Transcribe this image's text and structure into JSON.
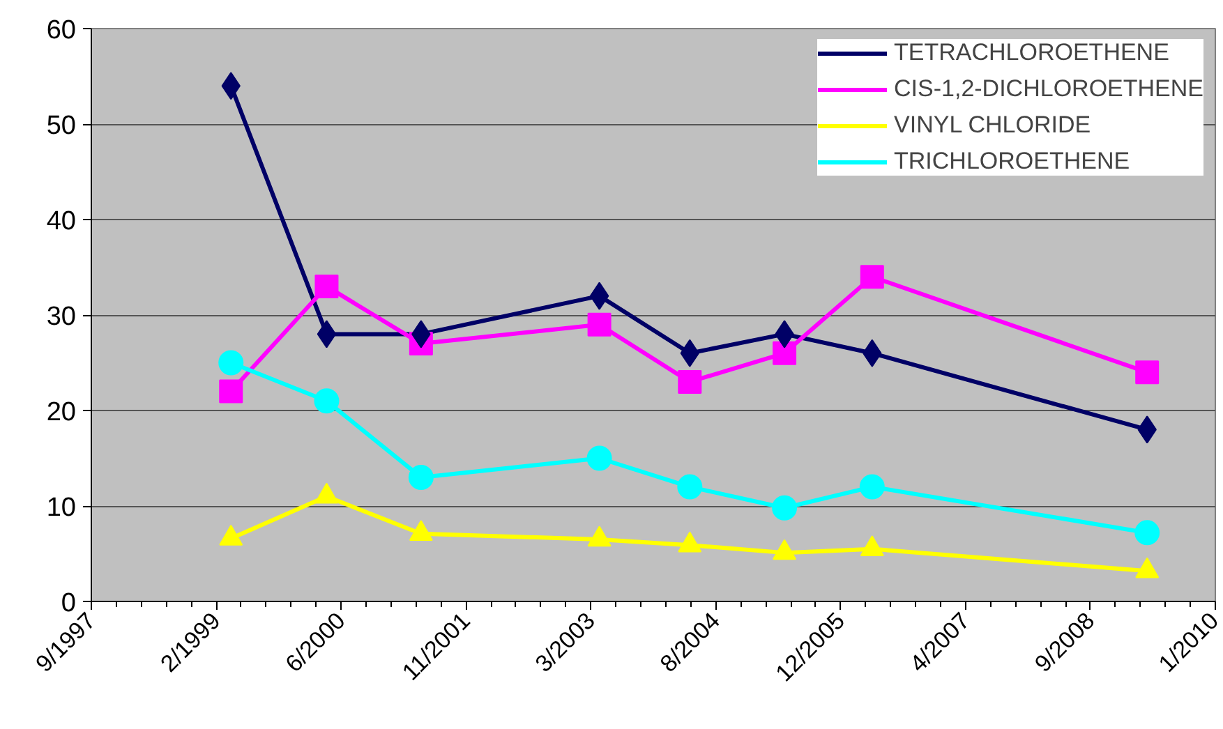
{
  "chart_data": {
    "type": "line",
    "x": [
      "1999-04-10",
      "2000-04-27",
      "2001-05-10",
      "2003-04-24",
      "2004-04-20",
      "2005-05-04",
      "2006-04-20",
      "2009-04-25"
    ],
    "series": [
      {
        "name": "TETRACHLOROETHENE",
        "color": "#000066",
        "marker": "diamond",
        "values": [
          54,
          28,
          28,
          32,
          26,
          28,
          26,
          18
        ]
      },
      {
        "name": "CIS-1,2-DICHLOROETHENE",
        "color": "#ff00ff",
        "marker": "square",
        "values": [
          22,
          33,
          27,
          29,
          23,
          26,
          34,
          24
        ]
      },
      {
        "name": "VINYL CHLORIDE",
        "color": "#ffff00",
        "marker": "triangle",
        "values": [
          6.6,
          11,
          7.1,
          6.5,
          5.9,
          5.1,
          5.5,
          3.2
        ]
      },
      {
        "name": "TRICHLOROETHENE",
        "color": "#00ffff",
        "marker": "circle",
        "values": [
          25,
          21,
          13,
          15,
          12,
          9.8,
          12,
          7.2
        ]
      }
    ],
    "xlim": [
      "1997-09-28",
      "2010-01-23"
    ],
    "xticks": [
      {
        "value": "1997-09-28",
        "label": "9/1997"
      },
      {
        "value": "1999-02-10",
        "label": "2/1999"
      },
      {
        "value": "2000-06-24",
        "label": "6/2000"
      },
      {
        "value": "2001-11-06",
        "label": "11/2001"
      },
      {
        "value": "2003-03-21",
        "label": "3/2003"
      },
      {
        "value": "2004-08-02",
        "label": "8/2004"
      },
      {
        "value": "2005-12-15",
        "label": "12/2005"
      },
      {
        "value": "2007-04-29",
        "label": "4/2007"
      },
      {
        "value": "2008-09-10",
        "label": "9/2008"
      },
      {
        "value": "2010-01-23",
        "label": "1/2010"
      }
    ],
    "ylim": [
      0,
      60
    ],
    "yticks": [
      0,
      10,
      20,
      30,
      40,
      50,
      60
    ],
    "grid": "y",
    "legend": "top right",
    "line_style": "solid"
  }
}
